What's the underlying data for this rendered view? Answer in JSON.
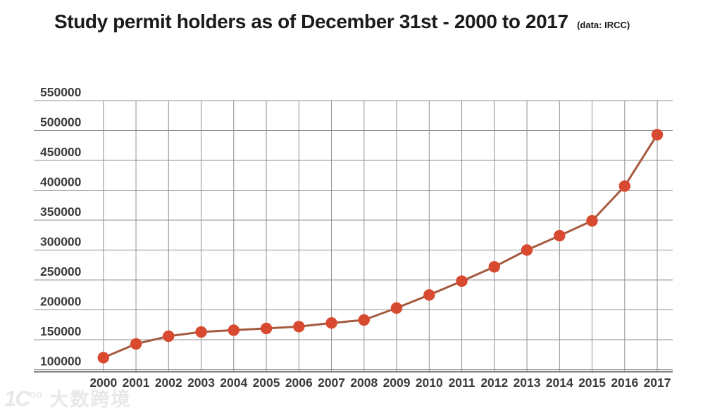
{
  "header": {
    "title": "Study permit holders as of December 31st - 2000 to 2017",
    "subtitle": "(data: IRCC)"
  },
  "watermark": {
    "logo": "1C",
    "logo_sup": "oo",
    "text": "大数跨境"
  },
  "colors": {
    "background": "#ffffff",
    "title": "#1b1b1b",
    "point": "#d84a30",
    "line": "#a55a40",
    "grid": "#909090",
    "axis": "#6d6d6d",
    "tick_label": "#3c3c3c",
    "watermark": "#e9e8e6"
  },
  "chart_data": {
    "type": "line",
    "title": "Study permit holders as of December 31st - 2000 to 2017",
    "source_note": "(data: IRCC)",
    "x": [
      2000,
      2001,
      2002,
      2003,
      2004,
      2005,
      2006,
      2007,
      2008,
      2009,
      2010,
      2011,
      2012,
      2013,
      2014,
      2015,
      2016,
      2017
    ],
    "series": [
      {
        "name": "Study permit holders",
        "values": [
          120000,
          143000,
          156000,
          163000,
          166000,
          169000,
          172000,
          178000,
          183000,
          203000,
          225000,
          248000,
          272000,
          300000,
          324000,
          349000,
          407000,
          493000
        ]
      }
    ],
    "xlabel": "",
    "ylabel": "",
    "ylim": [
      100000,
      550000
    ],
    "yticks": [
      100000,
      150000,
      200000,
      250000,
      300000,
      350000,
      400000,
      450000,
      500000,
      550000
    ],
    "grid": true,
    "legend": "none",
    "marker": "circle"
  }
}
